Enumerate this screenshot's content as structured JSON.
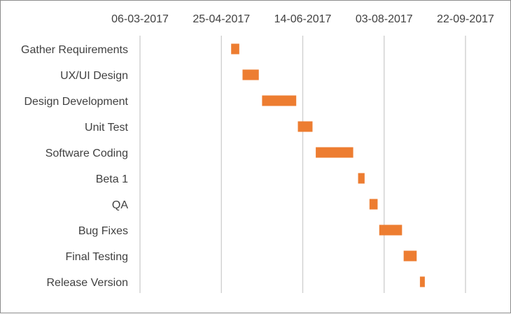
{
  "chart_data": {
    "type": "bar",
    "subtype": "gantt",
    "title": "",
    "xlabel": "",
    "ylabel": "",
    "x_ticks": [
      "06-03-2017",
      "25-04-2017",
      "14-06-2017",
      "03-08-2017",
      "22-09-2017"
    ],
    "xlim": [
      "06-03-2017",
      "22-09-2017"
    ],
    "grid": true,
    "legend": "none",
    "color": "#ED7D31",
    "tasks": [
      {
        "name": "Gather Requirements",
        "start": "2017-05-01",
        "end": "2017-05-06"
      },
      {
        "name": "UX/UI Design",
        "start": "2017-05-08",
        "end": "2017-05-18"
      },
      {
        "name": "Design Development",
        "start": "2017-05-20",
        "end": "2017-06-10"
      },
      {
        "name": "Unit Test",
        "start": "2017-06-11",
        "end": "2017-06-20"
      },
      {
        "name": "Software Coding",
        "start": "2017-06-22",
        "end": "2017-07-15"
      },
      {
        "name": "Beta 1",
        "start": "2017-07-18",
        "end": "2017-07-22"
      },
      {
        "name": "QA",
        "start": "2017-07-25",
        "end": "2017-07-30"
      },
      {
        "name": "Bug Fixes",
        "start": "2017-07-31",
        "end": "2017-08-14"
      },
      {
        "name": "Final Testing",
        "start": "2017-08-15",
        "end": "2017-08-23"
      },
      {
        "name": "Release Version",
        "start": "2017-08-25",
        "end": "2017-08-28"
      }
    ]
  }
}
